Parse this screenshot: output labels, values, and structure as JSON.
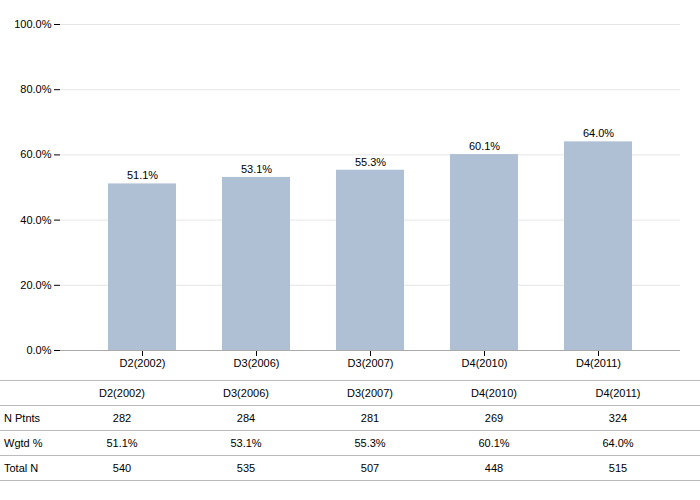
{
  "chart_data": {
    "type": "bar",
    "categories": [
      "D2(2002)",
      "D3(2006)",
      "D3(2007)",
      "D4(2010)",
      "D4(2011)"
    ],
    "values": [
      51.1,
      53.1,
      55.3,
      60.1,
      64.0
    ],
    "value_labels": [
      "51.1%",
      "53.1%",
      "55.3%",
      "60.1%",
      "64.0%"
    ],
    "data_labels": true,
    "color": "#b0c0d4",
    "ylim": [
      0,
      100
    ],
    "yticks": [
      {
        "value": 0,
        "label": "0.0%"
      },
      {
        "value": 20,
        "label": "20.0%"
      },
      {
        "value": 40,
        "label": "40.0%"
      },
      {
        "value": 60,
        "label": "60.0%"
      },
      {
        "value": 80,
        "label": "80.0%"
      },
      {
        "value": 100,
        "label": "100.0%"
      }
    ],
    "grid": true,
    "table_rows": [
      "N Ptnts",
      "Wgtd %",
      "Total N"
    ],
    "table_data": [
      [
        "282",
        "284",
        "281",
        "269",
        "324"
      ],
      [
        "51.1%",
        "53.1%",
        "55.3%",
        "60.1%",
        "64.0%"
      ],
      [
        "540",
        "535",
        "507",
        "448",
        "515"
      ]
    ]
  }
}
